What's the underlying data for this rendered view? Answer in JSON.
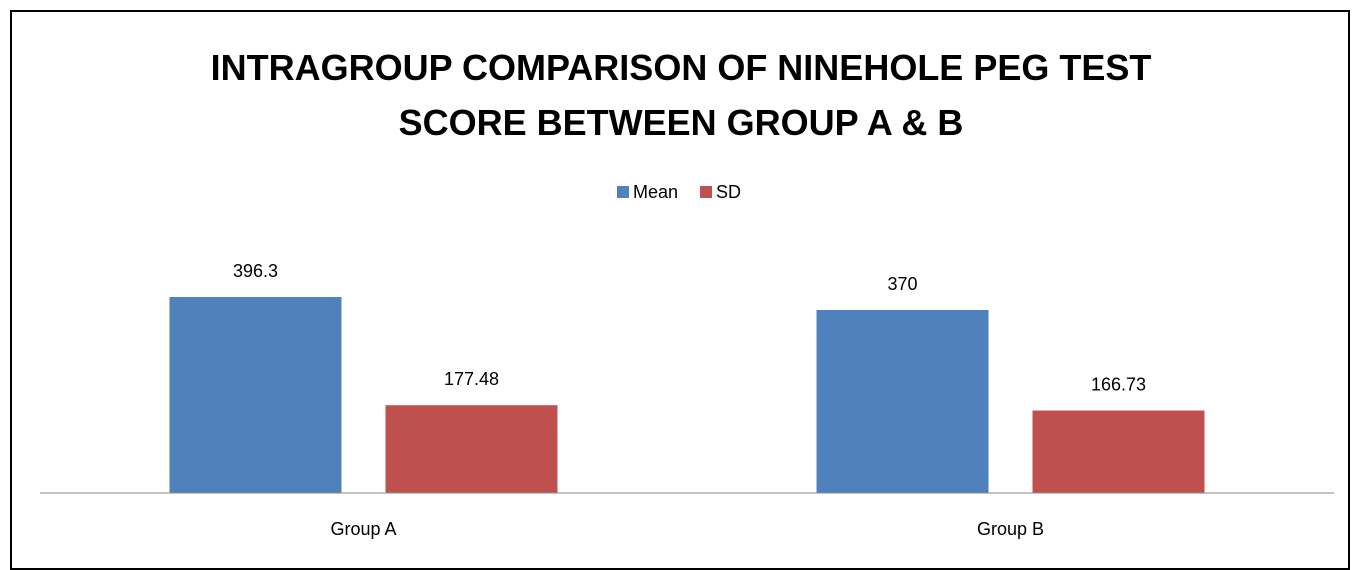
{
  "chart_data": {
    "type": "bar",
    "title": "INTRAGROUP COMPARISON OF NINEHOLE PEG TEST SCORE BETWEEN GROUP A & B",
    "categories": [
      "Group A",
      "Group B"
    ],
    "series": [
      {
        "name": "Mean",
        "color": "#4f81bd",
        "values": [
          396.3,
          370
        ]
      },
      {
        "name": "SD",
        "color": "#c0504d",
        "values": [
          177.48,
          166.73
        ]
      }
    ],
    "legend": "top"
  }
}
